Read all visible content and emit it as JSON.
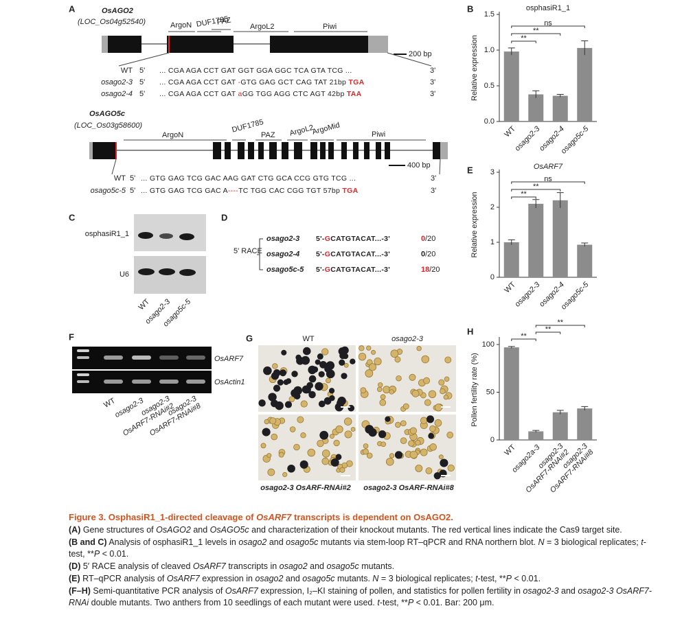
{
  "chart_data": [
    {
      "type": "bar",
      "panel": "B",
      "title": "osphasiR1_1",
      "y_label": "Relative expression",
      "categories": [
        "WT",
        "osago2-3",
        "osago2-4",
        "osago5c-5"
      ],
      "values": [
        0.98,
        0.38,
        0.36,
        1.03
      ],
      "errors": [
        0.05,
        0.05,
        0.02,
        0.1
      ],
      "color": "#8c8c8c",
      "ylim": [
        0,
        1.5
      ],
      "yticks": [
        {
          "value": 0,
          "label": "0.0"
        },
        0.5,
        {
          "value": 1,
          "label": "1.0"
        },
        1.5
      ],
      "brackets": [
        {
          "label": "**",
          "from": 0,
          "to": 1
        },
        {
          "label": "**",
          "from": 0,
          "to": 2
        },
        {
          "label": "ns",
          "from": 0,
          "to": 3
        }
      ]
    },
    {
      "type": "bar",
      "panel": "E",
      "title": "OsARF7",
      "y_label": "Relative expression",
      "categories": [
        "WT",
        "osago2-3",
        "osago2-4",
        "osago5c-5"
      ],
      "values": [
        1.0,
        2.1,
        2.2,
        0.93
      ],
      "errors": [
        0.07,
        0.12,
        0.22,
        0.05
      ],
      "color": "#8c8c8c",
      "ylim": [
        0,
        3
      ],
      "yticks": [
        0,
        1,
        2,
        3
      ],
      "brackets": [
        {
          "label": "**",
          "from": 0,
          "to": 1
        },
        {
          "label": "**",
          "from": 0,
          "to": 2
        },
        {
          "label": "ns",
          "from": 0,
          "to": 3
        }
      ]
    },
    {
      "type": "bar",
      "panel": "H",
      "y_label": "Pollen fertility rate (%)",
      "categories": [
        "WT",
        "osago2a-3",
        [
          "osago2-3",
          "OsARF7-RNAi#2"
        ],
        [
          "osago2-3",
          "OsARF7-RNAi#8"
        ]
      ],
      "values": [
        97,
        9,
        29,
        33
      ],
      "errors": [
        1,
        1,
        2,
        2
      ],
      "color": "#8c8c8c",
      "ylim": [
        0,
        105
      ],
      "yticks": [
        0,
        50,
        100
      ],
      "brackets": [
        {
          "label": "**",
          "from": 0,
          "to": 1
        },
        {
          "label": "**",
          "from": 1,
          "to": 2
        },
        {
          "label": "**",
          "from": 1,
          "to": 3
        }
      ]
    }
  ],
  "panel_a": {
    "letter": "A",
    "genes": [
      {
        "name": "OsAGO2",
        "locus": "(LOC_Os04g52540)",
        "domains": [
          "ArgoN",
          "DUF1785",
          "PAZ",
          "ArgoL2",
          "Piwi"
        ],
        "scale": "200 bp",
        "rows": [
          {
            "label": "WT",
            "prime5": "5'",
            "seq": "... CGA AGA CCT GAT GGT GGA GGC TCA GTA TCG ...",
            "prime3": "3'"
          },
          {
            "label": "osago2-3",
            "prime5": "5'",
            "seq": "... CGA AGA CCT GAT ",
            "edit": "-",
            "after": "GTG GAG GCT CAG TAT 21bp ",
            "stop": "TGA",
            "prime3": "3'"
          },
          {
            "label": "osago2-4",
            "prime5": "5'",
            "seq": "... CGA AGA CCT GAT ",
            "edit": "a",
            "after": "GG TGG AGG CTC AGT 42bp ",
            "stop": "TAA",
            "prime3": "3'"
          }
        ]
      },
      {
        "name": "OsAGO5c",
        "locus": "(LOC_Os03g58600)",
        "domains": [
          "ArgoN",
          "DUF1785",
          "PAZ",
          "ArgoL2",
          "ArgoMid",
          "Piwi"
        ],
        "scale": "400 bp",
        "rows": [
          {
            "label": "WT",
            "prime5": "5'",
            "seq": "... GTG GAG TCG GAC AAG GAT CTG GCA CCG GTG TCG ...",
            "prime3": "3'"
          },
          {
            "label": "osago5c-5",
            "prime5": "5'",
            "seq": "... GTG GAG TCG GAC A",
            "edit": "----",
            "after": "TC TGG CAC CGG TGT 57bp ",
            "stop": "TGA",
            "prime3": "3'"
          }
        ]
      }
    ]
  },
  "panel_c": {
    "letter": "C",
    "probes": [
      "osphasiR1_1",
      "U6"
    ],
    "lanes": [
      "WT",
      "osago2-3",
      "osago5c-5"
    ]
  },
  "panel_d": {
    "letter": "D",
    "method": "5' RACE",
    "rows": [
      {
        "name": "osago2-3",
        "prefix": "5'-",
        "cleaved_base": "G",
        "seq": "CATGTACAT...-3'",
        "count": 0,
        "of": "/20",
        "count_color": "#e0262a"
      },
      {
        "name": "osago2-4",
        "prefix": "5'-",
        "cleaved_base": "G",
        "seq": "CATGTACAT...-3'",
        "count": 0,
        "of": "/20",
        "count_color": "#222222"
      },
      {
        "name": "osago5c-5",
        "prefix": "5'-",
        "cleaved_base": "G",
        "seq": "CATGTACAT...-3'",
        "count": 18,
        "of": "/20",
        "count_color": "#e0262a"
      }
    ]
  },
  "panel_f": {
    "letter": "F",
    "genes": [
      "OsARF7",
      "OsActin1"
    ],
    "lanes": [
      "WT",
      "osago2-3",
      [
        "osago2-3",
        "OsARF7-RNAi#2"
      ],
      [
        "osago2-3",
        "OsARF7-RNAi#8"
      ]
    ]
  },
  "panel_g": {
    "letter": "G",
    "labels": [
      "WT",
      "osago2-3",
      "osago2-3 OsARF-RNAi#2",
      "osago2-3 OsARF-RNAi#8"
    ]
  },
  "caption": {
    "title": [
      "Figure 3. OsphasiR1_1-directed cleavage of ",
      "OsARF7",
      " transcripts is dependent on OsAGO2."
    ],
    "items": [
      {
        "tag": "(A)",
        "text": [
          " Gene structures of ",
          "OsAGO2",
          " and ",
          "OsAGO5c",
          " and characterization of their knockout mutants. The red vertical lines indicate the Cas9 target site."
        ]
      },
      {
        "tag": "(B and C)",
        "text": [
          " Analysis of osphasiR1_1 levels in ",
          "osago2",
          " and ",
          "osago5c",
          " mutants via stem-loop RT–qPCR and RNA northern blot. ",
          "N",
          " = 3 biological replicates; ",
          "t",
          "-test, **",
          "P",
          " < 0.01."
        ]
      },
      {
        "tag": "(D)",
        "text": [
          " 5′ RACE analysis of cleaved ",
          "OsARF7",
          " transcripts in ",
          "osago2",
          " and ",
          "osago5c",
          " mutants."
        ]
      },
      {
        "tag": "(E)",
        "text": [
          " RT–qPCR analysis of ",
          "OsARF7",
          " expression in ",
          "osago2",
          " and ",
          "osago5c",
          " mutants. ",
          "N",
          " = 3 biological replicates; ",
          "t",
          "-test, **",
          "P",
          " < 0.01."
        ]
      },
      {
        "tag": "(F–H)",
        "text": [
          " Semi-quantitative PCR analysis of ",
          "OsARF7",
          " expression, I₂–KI staining of pollen, and statistics for pollen fertility in ",
          "osago2-3",
          " and ",
          "osago2-3 OsARF7-RNAi",
          " double mutants. Two anthers from 10 seedlings of each mutant were used. ",
          "t",
          "-test, **",
          "P",
          " < 0.01. Bar: 200 μm."
        ]
      }
    ]
  }
}
